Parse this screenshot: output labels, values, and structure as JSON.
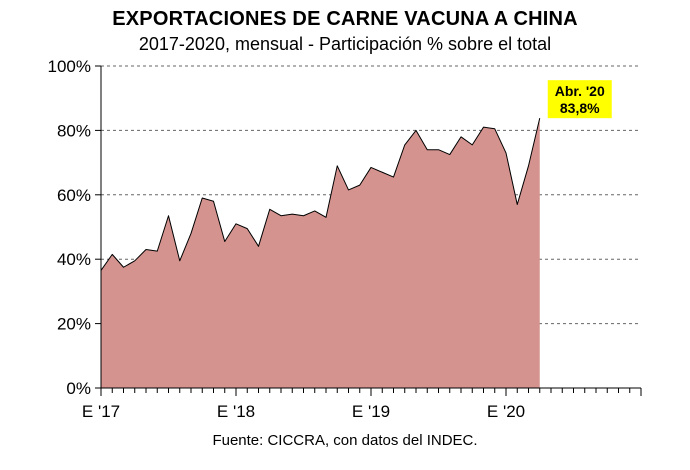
{
  "title": "EXPORTACIONES DE CARNE VACUNA A CHINA",
  "subtitle": "2017-2020, mensual - Participación % sobre el total",
  "source": "Fuente: CICCRA, con datos del INDEC.",
  "colors": {
    "area_fill": "#d4938f",
    "line": "#000000",
    "callout_bg": "#ffff00",
    "grid": "#666666"
  },
  "chart_data": {
    "type": "area",
    "title": "EXPORTACIONES DE CARNE VACUNA A CHINA",
    "subtitle": "2017-2020, mensual - Participación % sobre el total",
    "xlabel": "",
    "ylabel": "",
    "x_tick_labels": [
      "E '17",
      "E '18",
      "E '19",
      "E '20"
    ],
    "y_tick_labels": [
      "0%",
      "20%",
      "40%",
      "60%",
      "80%",
      "100%"
    ],
    "ylim": [
      0,
      100
    ],
    "grid": "horizontal dashed",
    "x": [
      "2017-01",
      "2017-02",
      "2017-03",
      "2017-04",
      "2017-05",
      "2017-06",
      "2017-07",
      "2017-08",
      "2017-09",
      "2017-10",
      "2017-11",
      "2017-12",
      "2018-01",
      "2018-02",
      "2018-03",
      "2018-04",
      "2018-05",
      "2018-06",
      "2018-07",
      "2018-08",
      "2018-09",
      "2018-10",
      "2018-11",
      "2018-12",
      "2019-01",
      "2019-02",
      "2019-03",
      "2019-04",
      "2019-05",
      "2019-06",
      "2019-07",
      "2019-08",
      "2019-09",
      "2019-10",
      "2019-11",
      "2019-12",
      "2020-01",
      "2020-02",
      "2020-03",
      "2020-04"
    ],
    "values": [
      36.5,
      41.5,
      37.5,
      39.5,
      43.0,
      42.5,
      53.5,
      39.5,
      48.0,
      59.0,
      58.0,
      45.5,
      51.0,
      49.5,
      44.0,
      55.5,
      53.5,
      54.0,
      53.5,
      55.0,
      53.0,
      69.0,
      61.5,
      63.0,
      68.5,
      67.0,
      65.5,
      75.5,
      80.0,
      74.0,
      74.0,
      72.5,
      78.0,
      75.5,
      81.0,
      80.5,
      73.0,
      57.0,
      69.0,
      83.8
    ],
    "months_axis_total": 48,
    "annotation": {
      "label": "Abr. '20",
      "value_label": "83,8%",
      "x": "2020-04",
      "y": 83.8
    }
  }
}
